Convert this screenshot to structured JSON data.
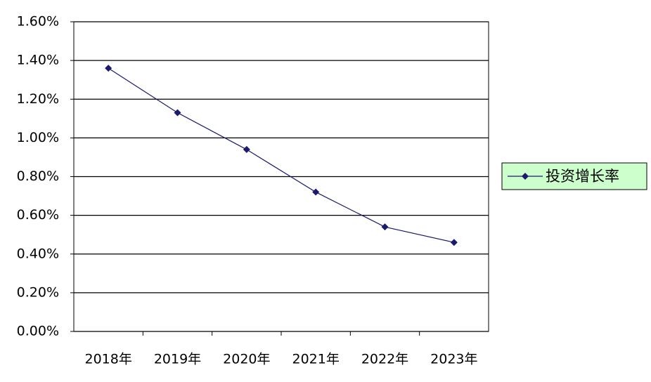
{
  "chart_data": {
    "type": "line",
    "categories": [
      "2018年",
      "2019年",
      "2020年",
      "2021年",
      "2022年",
      "2023年"
    ],
    "series": [
      {
        "name": "投资增长率",
        "color": "#1a1a6e",
        "values": [
          1.36,
          1.13,
          0.94,
          0.72,
          0.54,
          0.46
        ]
      }
    ],
    "ylim": [
      0,
      1.6
    ],
    "yticks": [
      {
        "value": 0,
        "label": "0.00%"
      },
      {
        "value": 0.2,
        "label": "0.20%"
      },
      {
        "value": 0.4,
        "label": "0.40%"
      },
      {
        "value": 0.6,
        "label": "0.60%"
      },
      {
        "value": 0.8,
        "label": "0.80%"
      },
      {
        "value": 1.0,
        "label": "1.00%"
      },
      {
        "value": 1.2,
        "label": "1.20%"
      },
      {
        "value": 1.4,
        "label": "1.40%"
      },
      {
        "value": 1.6,
        "label": "1.60%"
      }
    ],
    "grid": true,
    "legend": "right"
  }
}
